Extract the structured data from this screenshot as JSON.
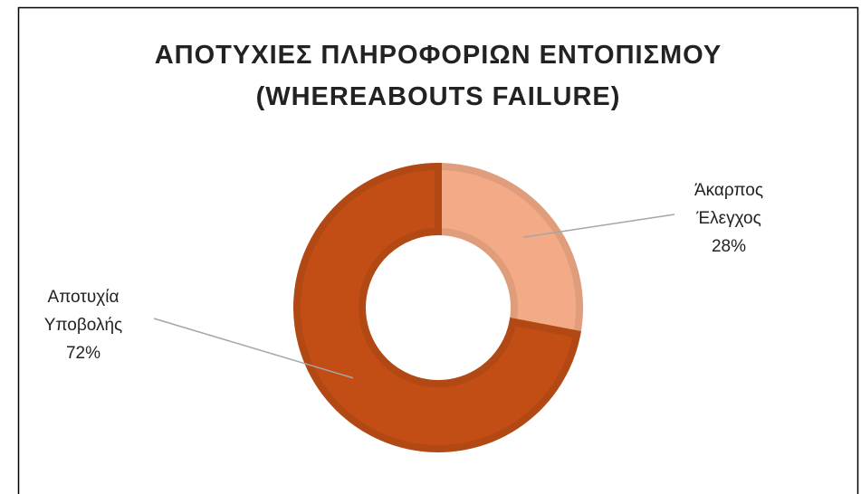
{
  "chart_data": {
    "type": "donut",
    "title": [
      "ΑΠΟΤΥΧΙΕΣ ΠΛΗΡΟΦΟΡΙΩΝ ΕΝΤΟΠΙΣΜΟΥ",
      "(WHEREABOUTS FAILURE)"
    ],
    "categories": [
      "Άκαρπος Έλεγχος",
      "Αποτυχία Υποβολής"
    ],
    "values": [
      28,
      72
    ],
    "value_labels": [
      "28%",
      "72%"
    ],
    "colors": [
      "#f2ab86",
      "#c24e15"
    ]
  }
}
